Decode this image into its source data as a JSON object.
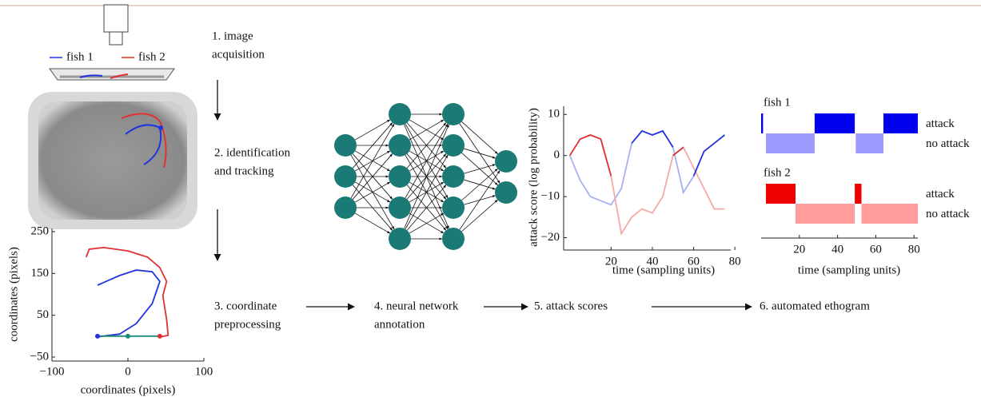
{
  "fish_legend": [
    {
      "label": "fish 1",
      "color": "#2233dd"
    },
    {
      "label": "fish 2",
      "color": "#e03030"
    }
  ],
  "steps": [
    [
      "1. image",
      "acquisition"
    ],
    [
      "2. identification",
      "and tracking"
    ],
    [
      "3. coordinate",
      "preprocessing"
    ],
    [
      "4. neural network",
      "annotation"
    ],
    [
      "5. attack scores"
    ],
    [
      "6. automated ethogram"
    ]
  ],
  "coordinates_plot": {
    "type": "line",
    "xlabel": "coordinates (pixels)",
    "ylabel": "coordinates (pixels)",
    "xlim": [
      -100,
      100
    ],
    "xticks": [
      {
        "value": -100,
        "label": "−100"
      },
      0,
      100
    ],
    "ylim": [
      -50,
      250
    ],
    "yticks": [
      {
        "value": -50,
        "label": "−50"
      },
      50,
      150,
      250
    ],
    "series": [
      {
        "color": "#e03030",
        "x": [
          -55,
          -51,
          -32,
          0,
          26,
          42,
          51,
          46,
          51,
          53,
          42
        ],
        "values": [
          189,
          208,
          212,
          204,
          189,
          164,
          131,
          97,
          40,
          2,
          -2
        ]
      },
      {
        "color": "#2233dd",
        "x": [
          -40,
          -11,
          11,
          32,
          42,
          32,
          11,
          -11,
          -42
        ],
        "values": [
          122,
          145,
          158,
          154,
          131,
          78,
          30,
          5,
          -2
        ]
      },
      {
        "color": "#1b8a7a",
        "x": [
          -40,
          0,
          42
        ],
        "values": [
          0,
          0,
          0
        ],
        "point_colors": [
          "#2233dd",
          "#1b8a7a",
          "#e03030"
        ]
      }
    ]
  },
  "attack_plot": {
    "type": "line",
    "xlabel": "time (sampling units)",
    "ylabel": "attack score (log probability)",
    "xlim": [
      -3,
      78
    ],
    "xticks": [
      20,
      40,
      60,
      80
    ],
    "ylim": [
      -23,
      12
    ],
    "yticks": [
      10,
      0,
      {
        "value": -10,
        "label": "−10"
      },
      {
        "value": -20,
        "label": "−20"
      }
    ],
    "x": [
      0,
      5,
      10,
      15,
      20,
      25,
      30,
      35,
      40,
      45,
      50,
      55,
      60,
      65,
      70,
      75
    ],
    "series": [
      {
        "color": "#a8b0f0",
        "values": [
          0,
          -6,
          -10,
          -11,
          -12,
          -8,
          3,
          null,
          null,
          null,
          2,
          -9,
          -5,
          null,
          null,
          null
        ]
      },
      {
        "color": "#f5a8a8",
        "values": [
          null,
          null,
          null,
          null,
          -5,
          -19,
          -15,
          -13,
          -14,
          -10,
          0,
          2,
          -3,
          -8,
          -13,
          -13
        ]
      },
      {
        "color": "#2233dd",
        "values": [
          null,
          null,
          null,
          null,
          null,
          null,
          3,
          6,
          5,
          6,
          2,
          null,
          -5,
          1,
          3,
          5
        ]
      },
      {
        "color": "#e03030",
        "values": [
          0,
          4,
          5,
          4,
          -5,
          null,
          null,
          null,
          null,
          null,
          0,
          2,
          null,
          null,
          null,
          null
        ]
      }
    ]
  },
  "ethogram": {
    "xlim": [
      0,
      82
    ],
    "xticks": [
      20,
      40,
      60,
      80
    ],
    "xlabel": "time (sampling units)",
    "fish": [
      {
        "label": "fish 1",
        "rows": [
          {
            "label": "attack",
            "color": "#0000ee",
            "intervals": [
              [
                0,
                1
              ],
              [
                28,
                49
              ],
              [
                64,
                82
              ]
            ]
          },
          {
            "label": "no attack",
            "color": "#9c9cff",
            "intervals": [
              [
                2.5,
                28
              ],
              [
                49.5,
                64
              ]
            ]
          }
        ]
      },
      {
        "label": "fish 2",
        "rows": [
          {
            "label": "attack",
            "color": "#ee0000",
            "intervals": [
              [
                2.5,
                18
              ],
              [
                49,
                52.5
              ]
            ]
          },
          {
            "label": "no attack",
            "color": "#ff9c9c",
            "intervals": [
              [
                18,
                49
              ],
              [
                52.5,
                82
              ]
            ]
          }
        ]
      }
    ]
  }
}
